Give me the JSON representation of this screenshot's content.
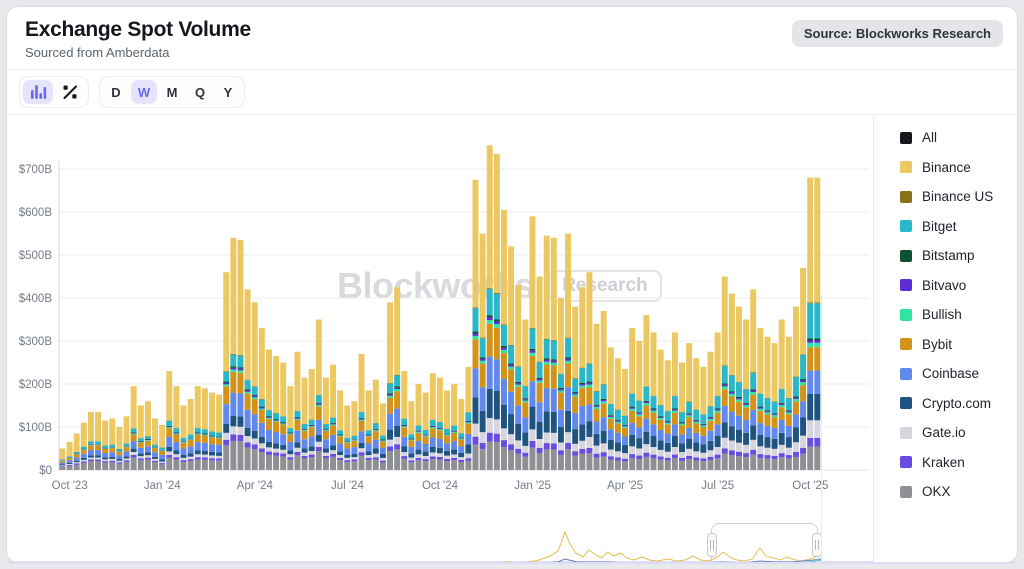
{
  "header": {
    "title": "Exchange Spot Volume",
    "subtitle": "Sourced from Amberdata",
    "source_badge": "Source: Blockworks Research"
  },
  "toolbar": {
    "chart_type_buttons": [
      {
        "name": "bar-chart",
        "active": true
      },
      {
        "name": "percent-change",
        "active": false
      }
    ],
    "intervals": [
      {
        "label": "D",
        "active": false
      },
      {
        "label": "W",
        "active": true
      },
      {
        "label": "M",
        "active": false
      },
      {
        "label": "Q",
        "active": false
      },
      {
        "label": "Y",
        "active": false
      }
    ]
  },
  "watermark": {
    "brand": "Blockworks",
    "tag": "Research"
  },
  "chart_data": {
    "type": "bar",
    "stacked": true,
    "title": "Exchange Spot Volume",
    "unit": "USD billions per week",
    "interval": "weekly",
    "start_week": "2023-10-02",
    "ylim": [
      0,
      780
    ],
    "grid": true,
    "legend_position": "right",
    "y_ticks": [
      {
        "label": "$0",
        "value": 0
      },
      {
        "label": "$100B",
        "value": 100
      },
      {
        "label": "$200B",
        "value": 200
      },
      {
        "label": "$300B",
        "value": 300
      },
      {
        "label": "$400B",
        "value": 400
      },
      {
        "label": "$500B",
        "value": 500
      },
      {
        "label": "$600B",
        "value": 600
      },
      {
        "label": "$700B",
        "value": 700
      }
    ],
    "x_ticks": [
      {
        "label": "Oct '23",
        "week": 1
      },
      {
        "label": "Jan '24",
        "week": 14
      },
      {
        "label": "Apr '24",
        "week": 27
      },
      {
        "label": "Jul '24",
        "week": 40
      },
      {
        "label": "Oct '24",
        "week": 53
      },
      {
        "label": "Jan '25",
        "week": 66
      },
      {
        "label": "Apr '25",
        "week": 79
      },
      {
        "label": "Jul '25",
        "week": 92
      },
      {
        "label": "Oct '25",
        "week": 105
      }
    ],
    "legend": [
      {
        "label": "All",
        "color": "#17181c"
      },
      {
        "label": "Binance",
        "color": "#ecc862"
      },
      {
        "label": "Binance US",
        "color": "#857317"
      },
      {
        "label": "Bitget",
        "color": "#2ab7c8"
      },
      {
        "label": "Bitstamp",
        "color": "#0c5132"
      },
      {
        "label": "Bitvavo",
        "color": "#5b2ed6"
      },
      {
        "label": "Bullish",
        "color": "#30e3a0"
      },
      {
        "label": "Bybit",
        "color": "#d29318"
      },
      {
        "label": "Coinbase",
        "color": "#6188ec"
      },
      {
        "label": "Crypto.com",
        "color": "#1f5380"
      },
      {
        "label": "Gate.io",
        "color": "#d6d5de"
      },
      {
        "label": "Kraken",
        "color": "#6a4ce0"
      },
      {
        "label": "OKX",
        "color": "#8f9094"
      }
    ],
    "stack_order_bottom_to_top": [
      "OKX",
      "Kraken",
      "Gate.io",
      "Crypto.com",
      "Coinbase",
      "Bybit",
      "Bullish",
      "Bitvavo",
      "Bitstamp",
      "Bitget",
      "Binance US",
      "Binance"
    ],
    "totals_billions": [
      50,
      65,
      85,
      110,
      135,
      135,
      115,
      120,
      100,
      125,
      195,
      150,
      160,
      120,
      105,
      230,
      195,
      150,
      165,
      195,
      190,
      180,
      175,
      460,
      540,
      535,
      420,
      390,
      330,
      280,
      265,
      250,
      195,
      275,
      215,
      235,
      350,
      215,
      245,
      185,
      150,
      160,
      270,
      185,
      210,
      155,
      390,
      425,
      230,
      160,
      200,
      180,
      225,
      215,
      185,
      200,
      165,
      240,
      675,
      550,
      755,
      735,
      605,
      520,
      430,
      350,
      590,
      450,
      545,
      540,
      400,
      550,
      380,
      425,
      460,
      340,
      370,
      285,
      260,
      235,
      330,
      300,
      360,
      320,
      280,
      255,
      320,
      250,
      295,
      260,
      240,
      275,
      320,
      450,
      410,
      380,
      350,
      420,
      330,
      310,
      295,
      350,
      310,
      380,
      470,
      680,
      680
    ],
    "series_note": "per-exchange weekly value = totals_billions[week] x shares[exchange] for the matching era",
    "series_share_eras": [
      {
        "from_week": 0,
        "to_week": 13,
        "shares": {
          "OKX": 0.15,
          "Kraken": 0.03,
          "Gate.io": 0.035,
          "Crypto.com": 0.04,
          "Coinbase": 0.09,
          "Bybit": 0.08,
          "Bullish": 0.01,
          "Bitvavo": 0.008,
          "Bitstamp": 0.008,
          "Bitget": 0.04,
          "Binance US": 0.004,
          "Binance": 0.505
        }
      },
      {
        "from_week": 14,
        "to_week": 43,
        "shares": {
          "OKX": 0.125,
          "Kraken": 0.028,
          "Gate.io": 0.035,
          "Crypto.com": 0.045,
          "Coinbase": 0.1,
          "Bybit": 0.09,
          "Bullish": 0.01,
          "Bitvavo": 0.007,
          "Bitstamp": 0.007,
          "Bitget": 0.05,
          "Binance US": 0.003,
          "Binance": 0.5
        }
      },
      {
        "from_week": 44,
        "to_week": 56,
        "shares": {
          "OKX": 0.113,
          "Kraken": 0.028,
          "Gate.io": 0.04,
          "Crypto.com": 0.06,
          "Coinbase": 0.095,
          "Bybit": 0.095,
          "Bullish": 0.012,
          "Bitvavo": 0.007,
          "Bitstamp": 0.007,
          "Bitget": 0.06,
          "Binance US": 0.003,
          "Binance": 0.48
        }
      },
      {
        "from_week": 57,
        "to_week": 73,
        "shares": {
          "OKX": 0.088,
          "Kraken": 0.027,
          "Gate.io": 0.045,
          "Crypto.com": 0.09,
          "Coinbase": 0.1,
          "Bybit": 0.1,
          "Bullish": 0.012,
          "Bitvavo": 0.008,
          "Bitstamp": 0.007,
          "Bitget": 0.08,
          "Binance US": 0.003,
          "Binance": 0.44
        }
      },
      {
        "from_week": 74,
        "to_week": 102,
        "shares": {
          "OKX": 0.085,
          "Kraken": 0.027,
          "Gate.io": 0.055,
          "Crypto.com": 0.08,
          "Coinbase": 0.085,
          "Bybit": 0.085,
          "Bullish": 0.015,
          "Bitvavo": 0.008,
          "Bitstamp": 0.007,
          "Bitget": 0.09,
          "Binance US": 0.003,
          "Binance": 0.46
        }
      },
      {
        "from_week": 103,
        "to_week": 106,
        "shares": {
          "OKX": 0.08,
          "Kraken": 0.03,
          "Gate.io": 0.06,
          "Crypto.com": 0.09,
          "Coinbase": 0.08,
          "Bybit": 0.08,
          "Bullish": 0.015,
          "Bitvavo": 0.008,
          "Bitstamp": 0.007,
          "Bitget": 0.12,
          "Binance US": 0.003,
          "Binance": 0.427
        }
      }
    ],
    "navigator": {
      "baseline_color": "#3c4a63",
      "selection": {
        "from_frac": 0.856,
        "to_frac": 0.997
      },
      "lines": [
        {
          "name": "binance",
          "color": "#e4bd4e",
          "points": [
            [
              0,
              0
            ],
            [
              0.3,
              0.5
            ],
            [
              0.45,
              0.5
            ],
            [
              0.5,
              1
            ],
            [
              0.53,
              1
            ],
            [
              0.55,
              2
            ],
            [
              0.57,
              1.5
            ],
            [
              0.59,
              3
            ],
            [
              0.61,
              2
            ],
            [
              0.63,
              5
            ],
            [
              0.645,
              9
            ],
            [
              0.655,
              14
            ],
            [
              0.664,
              33
            ],
            [
              0.67,
              22
            ],
            [
              0.678,
              12
            ],
            [
              0.688,
              8
            ],
            [
              0.695,
              15
            ],
            [
              0.703,
              11
            ],
            [
              0.712,
              7
            ],
            [
              0.72,
              13
            ],
            [
              0.728,
              9
            ],
            [
              0.737,
              12
            ],
            [
              0.745,
              7
            ],
            [
              0.755,
              5
            ],
            [
              0.765,
              8
            ],
            [
              0.775,
              5
            ],
            [
              0.785,
              4
            ],
            [
              0.8,
              6
            ],
            [
              0.81,
              4
            ],
            [
              0.822,
              5
            ],
            [
              0.832,
              9
            ],
            [
              0.842,
              5
            ],
            [
              0.852,
              4
            ],
            [
              0.862,
              7
            ],
            [
              0.872,
              13
            ],
            [
              0.882,
              7
            ],
            [
              0.89,
              5
            ],
            [
              0.9,
              4
            ],
            [
              0.91,
              6
            ],
            [
              0.92,
              17
            ],
            [
              0.928,
              9
            ],
            [
              0.937,
              7
            ],
            [
              0.947,
              5
            ],
            [
              0.955,
              8
            ],
            [
              0.963,
              6
            ],
            [
              0.972,
              4
            ],
            [
              0.98,
              5
            ],
            [
              0.99,
              7
            ],
            [
              1,
              11
            ]
          ]
        },
        {
          "name": "majors",
          "color": "#5f79b8",
          "points": [
            [
              0,
              0
            ],
            [
              0.5,
              0.3
            ],
            [
              0.55,
              0.8
            ],
            [
              0.6,
              1
            ],
            [
              0.63,
              2
            ],
            [
              0.655,
              3
            ],
            [
              0.664,
              6
            ],
            [
              0.68,
              3
            ],
            [
              0.7,
              3
            ],
            [
              0.72,
              3
            ],
            [
              0.75,
              2
            ],
            [
              0.78,
              2
            ],
            [
              0.81,
              2
            ],
            [
              0.84,
              2
            ],
            [
              0.87,
              3
            ],
            [
              0.9,
              2
            ],
            [
              0.92,
              4
            ],
            [
              0.94,
              3
            ],
            [
              0.96,
              3
            ],
            [
              0.975,
              4
            ],
            [
              0.99,
              5
            ],
            [
              1,
              6
            ]
          ]
        },
        {
          "name": "bitget",
          "color": "#2ab7c8",
          "points": [
            [
              0.9,
              0
            ],
            [
              0.92,
              1
            ],
            [
              0.95,
              1.5
            ],
            [
              0.97,
              2
            ],
            [
              0.985,
              3
            ],
            [
              1,
              5
            ]
          ]
        }
      ]
    }
  }
}
